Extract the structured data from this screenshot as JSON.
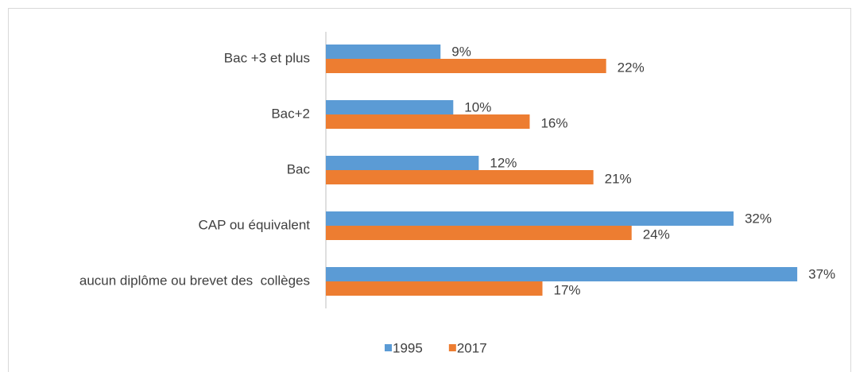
{
  "chart_data": {
    "type": "hbar",
    "categories": [
      "Bac +3 et plus",
      "Bac+2",
      "Bac",
      "CAP ou équivalent",
      "aucun diplôme ou brevet des  collèges"
    ],
    "series": [
      {
        "name": "1995",
        "color": "#5b9bd5",
        "values": [
          9,
          10,
          12,
          32,
          37
        ],
        "value_labels": [
          "9%",
          "10%",
          "12%",
          "32%",
          "37%"
        ]
      },
      {
        "name": "2017",
        "color": "#ed7d31",
        "values": [
          22,
          16,
          21,
          24,
          17
        ],
        "value_labels": [
          "22%",
          "16%",
          "21%",
          "24%",
          "17%"
        ]
      }
    ],
    "legend": "bottom"
  }
}
